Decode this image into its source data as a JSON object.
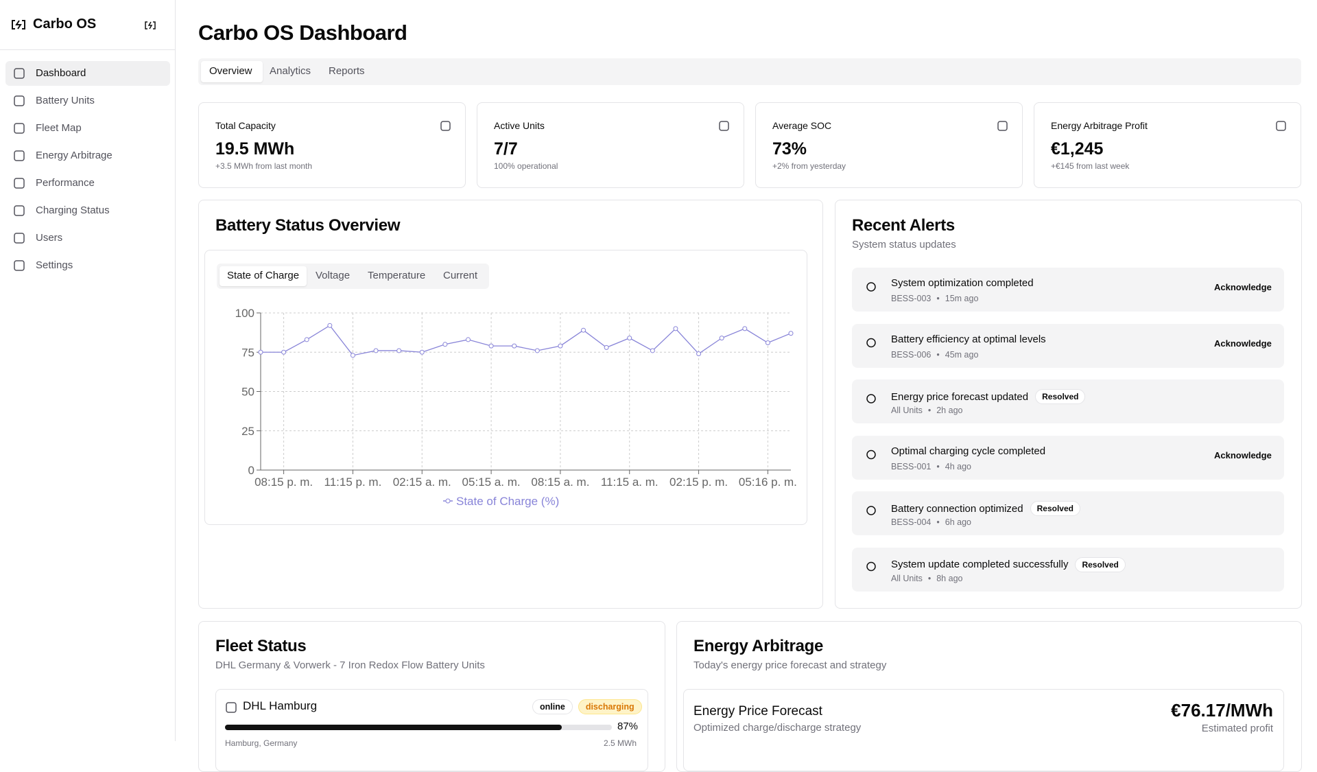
{
  "sidebar": {
    "brand": "Carbo OS",
    "nav": [
      "Dashboard",
      "Battery Units",
      "Fleet Map",
      "Energy Arbitrage",
      "Performance",
      "Charging Status",
      "Users",
      "Settings"
    ]
  },
  "header": {
    "title": "Carbo OS Dashboard",
    "tabs": [
      "Overview",
      "Analytics",
      "Reports"
    ]
  },
  "stats": [
    {
      "label": "Total Capacity",
      "value": "19.5 MWh",
      "note": "+3.5 MWh from last month"
    },
    {
      "label": "Active Units",
      "value": "7/7",
      "note": "100% operational"
    },
    {
      "label": "Average SOC",
      "value": "73%",
      "note": "+2% from yesterday"
    },
    {
      "label": "Energy Arbitrage Profit",
      "value": "€1,245",
      "note": "+€145 from last week"
    }
  ],
  "battery_status": {
    "title": "Battery Status Overview",
    "tabs": [
      "State of Charge",
      "Voltage",
      "Temperature",
      "Current"
    ]
  },
  "chart_data": {
    "type": "line",
    "categories": [
      null,
      "08:15 p. m.",
      null,
      null,
      "11:15 p. m.",
      null,
      null,
      "02:15 a. m.",
      null,
      null,
      "05:15 a. m.",
      null,
      null,
      "08:15 a. m.",
      null,
      null,
      "11:15 a. m.",
      null,
      null,
      "02:15 p. m.",
      null,
      null,
      "05:16 p. m.",
      null
    ],
    "series": [
      {
        "name": "State of Charge (%)",
        "color": "#8884d8",
        "values": [
          75,
          75,
          83,
          92,
          73,
          76,
          76,
          75,
          80,
          83,
          79,
          79,
          76,
          79,
          89,
          78,
          84,
          76,
          90,
          74,
          84,
          90,
          81,
          87
        ]
      }
    ],
    "ylim": [
      0,
      100
    ],
    "yticks": [
      0,
      25,
      50,
      75,
      100
    ],
    "grid": true
  },
  "alerts": {
    "title": "Recent Alerts",
    "subtitle": "System status updates",
    "items": [
      {
        "title": "System optimization completed",
        "unit": "BESS-003",
        "time": "15m ago",
        "action": "Acknowledge"
      },
      {
        "title": "Battery efficiency at optimal levels",
        "unit": "BESS-006",
        "time": "45m ago",
        "action": "Acknowledge"
      },
      {
        "title": "Energy price forecast updated",
        "unit": "All Units",
        "time": "2h ago",
        "badge": "Resolved"
      },
      {
        "title": "Optimal charging cycle completed",
        "unit": "BESS-001",
        "time": "4h ago",
        "action": "Acknowledge"
      },
      {
        "title": "Battery connection optimized",
        "unit": "BESS-004",
        "time": "6h ago",
        "badge": "Resolved"
      },
      {
        "title": "System update completed successfully",
        "unit": "All Units",
        "time": "8h ago",
        "badge": "Resolved"
      }
    ]
  },
  "fleet": {
    "title": "Fleet Status",
    "subtitle": "DHL Germany & Vorwerk - 7 Iron Redox Flow Battery Units",
    "units": [
      {
        "name": "DHL Hamburg",
        "tags": [
          "online",
          "discharging"
        ],
        "charge": "87%",
        "location": "Hamburg, Germany",
        "capacity": "2.5 MWh"
      }
    ]
  },
  "arbitrage": {
    "title": "Energy Arbitrage",
    "subtitle": "Today's energy price forecast and strategy",
    "forecast": {
      "title": "Energy Price Forecast",
      "subtitle": "Optimized charge/discharge strategy",
      "value": "€76.17/MWh",
      "note": "Estimated profit"
    }
  }
}
